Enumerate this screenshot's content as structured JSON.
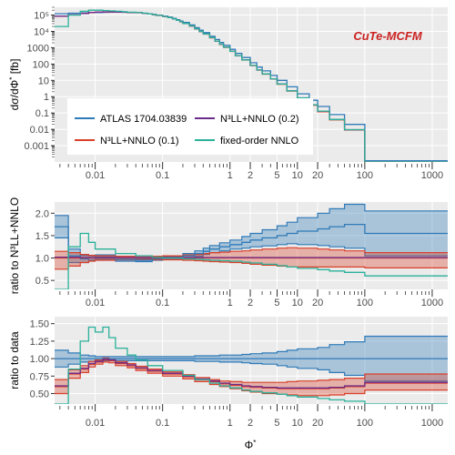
{
  "chart_data": [
    {
      "panel": "top",
      "type": "step",
      "ylabel_main": "dσ/dΦ",
      "ylabel_sup": "*",
      "ylabel_unit": " [fb]",
      "x_scale": "log",
      "y_scale": "log",
      "xlim": [
        0.0025,
        1700
      ],
      "ylim": [
        0.0001,
        300000
      ],
      "y_ticks": [
        100000,
        10000,
        1000,
        100,
        10,
        1,
        0.1,
        0.01,
        0.001
      ],
      "y_tick_labels": [
        "10⁵",
        "10⁴",
        "1000",
        "100",
        "10",
        "1",
        "0.1",
        "0.01",
        "0.001"
      ],
      "x_ticks": [
        0.01,
        0.1,
        1,
        2,
        5,
        10,
        20,
        100,
        1000
      ],
      "x_tick_labels": [
        "0.01",
        "0.1",
        "1",
        "2",
        "5",
        "10",
        "20",
        "100",
        "1000"
      ],
      "grid": true,
      "legend": "lower-left inside",
      "edges": [
        0.0025,
        0.004,
        0.006,
        0.008,
        0.01,
        0.013,
        0.016,
        0.02,
        0.025,
        0.03,
        0.04,
        0.05,
        0.06,
        0.07,
        0.08,
        0.1,
        0.12,
        0.14,
        0.16,
        0.18,
        0.2,
        0.25,
        0.3,
        0.35,
        0.4,
        0.5,
        0.6,
        0.7,
        0.8,
        1,
        1.2,
        1.5,
        2,
        2.5,
        3,
        4,
        5,
        7,
        10,
        15,
        20,
        30,
        50,
        100,
        1700
      ],
      "series": [
        {
          "name": "ATLAS 1704.03839",
          "values": [
            120000,
            130000,
            135000,
            140000,
            145000,
            148000,
            150000,
            150000,
            148000,
            145000,
            140000,
            130000,
            120000,
            110000,
            100000,
            88000,
            75000,
            63000,
            52000,
            43000,
            35000,
            25000,
            17000,
            12000,
            8500,
            5000,
            3200,
            2100,
            1400,
            800,
            450,
            250,
            120,
            65,
            38,
            20,
            10,
            4,
            1.5,
            0.6,
            0.25,
            0.08,
            0.02,
            0.00012
          ]
        },
        {
          "name": "N³LL+NNLO (0.1)",
          "values": [
            85000,
            105000,
            125000,
            145000,
            150000,
            152000,
            154000,
            153000,
            150000,
            146000,
            139000,
            128000,
            117000,
            106000,
            95000,
            82000,
            69000,
            58000,
            47000,
            38000,
            30000,
            21000,
            14000,
            9800,
            6800,
            4000,
            2500,
            1600,
            1050,
            590,
            320,
            175,
            80,
            42,
            24,
            12,
            5.8,
            2.2,
            0.8,
            0.3,
            0.12,
            0.038,
            0.009,
            6e-05
          ]
        },
        {
          "name": "N³LL+NNLO (0.2)",
          "values": [
            86000,
            106000,
            126000,
            146000,
            151000,
            153000,
            155000,
            154000,
            151000,
            147000,
            140000,
            129000,
            118000,
            107000,
            96000,
            83000,
            70000,
            59000,
            48000,
            39000,
            31000,
            21500,
            14500,
            10000,
            7000,
            4100,
            2550,
            1650,
            1080,
            600,
            330,
            180,
            82,
            43,
            25,
            12.5,
            6,
            2.3,
            0.85,
            0.32,
            0.13,
            0.04,
            0.0095,
            6e-05
          ]
        },
        {
          "name": "fixed-order NNLO",
          "values": [
            20000,
            100000,
            170000,
            200000,
            200000,
            190000,
            180000,
            170000,
            160000,
            150000,
            140000,
            130000,
            118000,
            107000,
            96000,
            83000,
            70000,
            59000,
            48000,
            39000,
            31000,
            21500,
            14500,
            10000,
            7000,
            4100,
            2550,
            1650,
            1080,
            600,
            330,
            180,
            82,
            43,
            25,
            12.5,
            6,
            2.3,
            0.85,
            0.32,
            0.13,
            0.04,
            0.0095,
            6e-05
          ]
        }
      ]
    },
    {
      "panel": "middle",
      "type": "step-band",
      "ylabel": "ratio to N³LL+NNLO",
      "x_scale": "log",
      "ylim": [
        0.3,
        2.25
      ],
      "y_ticks": [
        0.5,
        1.0,
        1.5,
        2.0
      ],
      "y_tick_labels": [
        "0.5",
        "1.0",
        "1.5",
        "2.0"
      ],
      "x_ticks": [
        0.01,
        0.1,
        1,
        2,
        5,
        10,
        20,
        100,
        1000
      ],
      "x_tick_labels": [
        "0.01",
        "0.1",
        "1",
        "2",
        "5",
        "10",
        "20",
        "100",
        "1000"
      ],
      "edges": [
        0.0025,
        0.004,
        0.006,
        0.008,
        0.01,
        0.02,
        0.04,
        0.07,
        0.1,
        0.2,
        0.3,
        0.4,
        0.5,
        0.7,
        1,
        1.5,
        2,
        3,
        5,
        7,
        10,
        20,
        30,
        50,
        100,
        1700
      ],
      "series": [
        {
          "name": "ATLAS 1704.03839",
          "center": [
            1.7,
            1.05,
            0.98,
            1.0,
            1.02,
            0.97,
            0.95,
            0.98,
            1.0,
            1.05,
            1.1,
            1.15,
            1.2,
            1.25,
            1.3,
            1.35,
            1.4,
            1.45,
            1.5,
            1.55,
            1.6,
            1.65,
            1.7,
            1.75,
            1.55
          ],
          "low": [
            1.45,
            0.9,
            0.9,
            0.95,
            0.97,
            0.93,
            0.92,
            0.95,
            0.97,
            1.0,
            1.04,
            1.08,
            1.12,
            1.16,
            1.2,
            1.22,
            1.25,
            1.27,
            1.3,
            1.32,
            1.3,
            1.28,
            1.25,
            1.22,
            1.05
          ],
          "high": [
            1.95,
            1.2,
            1.06,
            1.05,
            1.07,
            1.01,
            0.98,
            1.01,
            1.03,
            1.1,
            1.16,
            1.22,
            1.28,
            1.34,
            1.4,
            1.48,
            1.55,
            1.63,
            1.72,
            1.8,
            1.9,
            2.0,
            2.1,
            2.2,
            2.05
          ]
        },
        {
          "name": "N³LL+NNLO (0.1)",
          "center": [
            1.0,
            1.0,
            1.0,
            1.0,
            1.0,
            1.0,
            1.0,
            1.0,
            1.0,
            1.0,
            1.0,
            1.0,
            1.0,
            1.0,
            1.0,
            1.0,
            1.0,
            1.0,
            1.0,
            1.0,
            1.0,
            1.0,
            1.0,
            1.0,
            1.0
          ],
          "low": [
            0.75,
            0.82,
            0.9,
            0.93,
            0.95,
            0.96,
            0.96,
            0.96,
            0.96,
            0.95,
            0.94,
            0.93,
            0.92,
            0.91,
            0.9,
            0.88,
            0.86,
            0.84,
            0.82,
            0.8,
            0.8,
            0.8,
            0.8,
            0.8,
            0.78
          ],
          "high": [
            1.15,
            1.12,
            1.08,
            1.06,
            1.05,
            1.04,
            1.04,
            1.04,
            1.05,
            1.07,
            1.08,
            1.1,
            1.12,
            1.13,
            1.15,
            1.16,
            1.18,
            1.2,
            1.22,
            1.23,
            1.22,
            1.2,
            1.18,
            1.16,
            1.12
          ]
        },
        {
          "name": "N³LL+NNLO (0.2)",
          "center": [
            1.02,
            1.02,
            1.01,
            1.01,
            1.01,
            1.01,
            1.01,
            1.01,
            1.01,
            1.01,
            1.01,
            1.01,
            1.01,
            1.01,
            1.01,
            1.01,
            1.01,
            1.01,
            1.01,
            1.01,
            1.01,
            1.01,
            1.01,
            1.01,
            1.01
          ]
        },
        {
          "name": "fixed-order NNLO",
          "center": [
            0.25,
            1.25,
            1.55,
            1.35,
            1.2,
            1.1,
            1.05,
            1.02,
            1.0,
            0.98,
            0.97,
            0.96,
            0.95,
            0.94,
            0.93,
            0.91,
            0.89,
            0.86,
            0.83,
            0.8,
            0.77,
            0.74,
            0.71,
            0.68,
            0.6
          ]
        }
      ]
    },
    {
      "panel": "bottom",
      "type": "step-band",
      "ylabel": "ratio to data",
      "xlabel_main": "Φ",
      "xlabel_sup": "*",
      "x_scale": "log",
      "ylim": [
        0.35,
        1.6
      ],
      "y_ticks": [
        0.5,
        0.75,
        1.0,
        1.25,
        1.5
      ],
      "y_tick_labels": [
        "0.50",
        "0.75",
        "1.00",
        "1.25",
        "1.50"
      ],
      "x_ticks": [
        0.01,
        0.1,
        1,
        2,
        5,
        10,
        20,
        100,
        1000
      ],
      "x_tick_labels": [
        "0.01",
        "0.1",
        "1",
        "2",
        "5",
        "10",
        "20",
        "100",
        "1000"
      ],
      "edges": [
        0.0025,
        0.004,
        0.006,
        0.008,
        0.01,
        0.013,
        0.016,
        0.02,
        0.03,
        0.04,
        0.06,
        0.1,
        0.2,
        0.3,
        0.5,
        0.7,
        1,
        1.5,
        2,
        3,
        5,
        7,
        10,
        20,
        30,
        50,
        100,
        1700
      ],
      "series": [
        {
          "name": "ATLAS 1704.03839",
          "center": [
            1.0,
            1.0,
            1.0,
            1.0,
            1.0,
            1.0,
            1.0,
            1.0,
            1.0,
            1.0,
            1.0,
            1.0,
            1.0,
            1.0,
            1.0,
            1.0,
            1.0,
            1.0,
            1.0,
            1.0,
            1.0,
            1.0,
            1.0,
            1.0,
            1.0,
            1.0,
            1.0
          ],
          "low": [
            0.88,
            0.92,
            0.95,
            0.96,
            0.97,
            0.97,
            0.97,
            0.97,
            0.97,
            0.97,
            0.97,
            0.97,
            0.97,
            0.96,
            0.96,
            0.95,
            0.95,
            0.94,
            0.93,
            0.92,
            0.9,
            0.88,
            0.86,
            0.84,
            0.8,
            0.76,
            0.68
          ],
          "high": [
            1.12,
            1.08,
            1.05,
            1.04,
            1.03,
            1.03,
            1.03,
            1.03,
            1.03,
            1.03,
            1.03,
            1.03,
            1.03,
            1.04,
            1.04,
            1.05,
            1.05,
            1.06,
            1.07,
            1.08,
            1.1,
            1.12,
            1.14,
            1.16,
            1.2,
            1.24,
            1.32
          ]
        },
        {
          "name": "N³LL+NNLO (0.1)",
          "center": [
            0.6,
            0.78,
            0.85,
            0.92,
            0.95,
            0.98,
            0.97,
            0.93,
            0.9,
            0.86,
            0.82,
            0.78,
            0.74,
            0.7,
            0.67,
            0.64,
            0.62,
            0.6,
            0.59,
            0.58,
            0.57,
            0.57,
            0.57,
            0.57,
            0.58,
            0.6,
            0.65
          ],
          "low": [
            0.5,
            0.72,
            0.8,
            0.88,
            0.92,
            0.95,
            0.94,
            0.9,
            0.87,
            0.83,
            0.79,
            0.75,
            0.71,
            0.67,
            0.63,
            0.6,
            0.57,
            0.54,
            0.52,
            0.5,
            0.49,
            0.48,
            0.47,
            0.47,
            0.48,
            0.5,
            0.55
          ],
          "high": [
            0.7,
            0.84,
            0.9,
            0.96,
            0.98,
            1.01,
            1.0,
            0.96,
            0.93,
            0.89,
            0.85,
            0.81,
            0.77,
            0.73,
            0.7,
            0.68,
            0.67,
            0.66,
            0.66,
            0.66,
            0.66,
            0.67,
            0.68,
            0.69,
            0.7,
            0.72,
            0.78
          ]
        },
        {
          "name": "N³LL+NNLO (0.2)",
          "center": [
            0.61,
            0.79,
            0.86,
            0.93,
            0.96,
            0.99,
            0.98,
            0.94,
            0.91,
            0.87,
            0.83,
            0.79,
            0.75,
            0.71,
            0.68,
            0.65,
            0.63,
            0.61,
            0.6,
            0.59,
            0.58,
            0.58,
            0.58,
            0.58,
            0.59,
            0.61,
            0.66
          ]
        },
        {
          "name": "fixed-order NNLO",
          "center": [
            0.2,
            0.85,
            1.25,
            1.45,
            1.38,
            1.45,
            1.3,
            1.15,
            1.05,
            0.98,
            0.9,
            0.83,
            0.76,
            0.7,
            0.65,
            0.61,
            0.58,
            0.55,
            0.53,
            0.51,
            0.49,
            0.47,
            0.45,
            0.43,
            0.41,
            0.39,
            0.3
          ]
        }
      ]
    }
  ],
  "brand": {
    "text": "CuTe-MCFM",
    "color": "#cc2222"
  },
  "colors": {
    "ATLAS 1704.03839": "#2f7ab8",
    "N³LL+NNLO (0.1)": "#d9412b",
    "N³LL+NNLO (0.2)": "#6b2d8c",
    "fixed-order NNLO": "#2ab19a",
    "panel_bg": "#ebebeb",
    "grid_major": "#ffffff",
    "grid_minor": "#f4f4f4"
  }
}
